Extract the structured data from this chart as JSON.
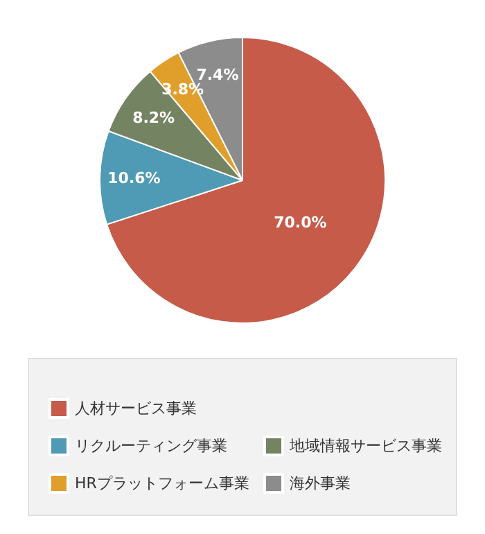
{
  "chart_data": {
    "type": "pie",
    "categories": [
      "人材サービス事業",
      "リクルーティング事業",
      "地域情報サービス事業",
      "HRプラットフォーム事業",
      "海外事業"
    ],
    "values": [
      70.0,
      10.6,
      8.2,
      3.8,
      7.4
    ],
    "colors": [
      "#c65b4a",
      "#4f9ab4",
      "#748462",
      "#e09f2b",
      "#8c8c8c"
    ],
    "value_labels": [
      "70.0%",
      "10.6%",
      "8.2%",
      "3.8%",
      "7.4%"
    ],
    "legend": "bottom"
  }
}
